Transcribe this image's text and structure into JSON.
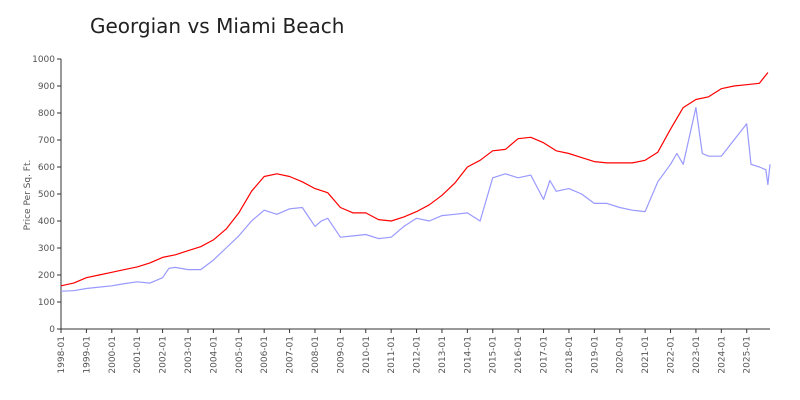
{
  "chart_data": {
    "type": "line",
    "title": "Georgian vs Miami Beach",
    "xlabel": "",
    "ylabel": "Price Per Sq. Ft.",
    "ylim": [
      0,
      1000
    ],
    "yticks": [
      0,
      100,
      200,
      300,
      400,
      500,
      600,
      700,
      800,
      900,
      1000
    ],
    "xlim": [
      "1998-01",
      "2025-12"
    ],
    "xticks": [
      "1998-01",
      "1999-01",
      "2000-01",
      "2001-01",
      "2002-01",
      "2003-01",
      "2004-01",
      "2005-01",
      "2006-01",
      "2007-01",
      "2008-01",
      "2009-01",
      "2010-01",
      "2011-01",
      "2012-01",
      "2013-01",
      "2014-01",
      "2015-01",
      "2016-01",
      "2017-01",
      "2018-01",
      "2019-01",
      "2020-01",
      "2021-01",
      "2022-01",
      "2023-01",
      "2024-01",
      "2025-01"
    ],
    "grid": false,
    "legend": "none",
    "series": [
      {
        "color": "#ff0000",
        "x": [
          "1998-01",
          "1998-07",
          "1999-01",
          "1999-07",
          "2000-01",
          "2000-07",
          "2001-01",
          "2001-07",
          "2002-01",
          "2002-07",
          "2003-01",
          "2003-07",
          "2004-01",
          "2004-07",
          "2005-01",
          "2005-07",
          "2006-01",
          "2006-07",
          "2007-01",
          "2007-07",
          "2008-01",
          "2008-07",
          "2009-01",
          "2009-07",
          "2010-01",
          "2010-07",
          "2011-01",
          "2011-07",
          "2012-01",
          "2012-07",
          "2013-01",
          "2013-07",
          "2014-01",
          "2014-07",
          "2015-01",
          "2015-07",
          "2016-01",
          "2016-07",
          "2017-01",
          "2017-07",
          "2018-01",
          "2018-07",
          "2019-01",
          "2019-07",
          "2020-01",
          "2020-07",
          "2021-01",
          "2021-07",
          "2022-01",
          "2022-07",
          "2023-01",
          "2023-07",
          "2024-01",
          "2024-07",
          "2025-01",
          "2025-07",
          "2025-11"
        ],
        "values": [
          160,
          170,
          190,
          200,
          210,
          220,
          230,
          245,
          265,
          275,
          290,
          305,
          330,
          370,
          430,
          510,
          565,
          575,
          565,
          545,
          520,
          505,
          450,
          430,
          430,
          405,
          400,
          415,
          435,
          460,
          495,
          540,
          600,
          625,
          660,
          665,
          705,
          710,
          690,
          660,
          650,
          635,
          620,
          615,
          615,
          615,
          625,
          655,
          740,
          820,
          850,
          860,
          890,
          900,
          905,
          910,
          950
        ]
      },
      {
        "color": "#9999ff",
        "x": [
          "1998-01",
          "1998-07",
          "1999-01",
          "1999-07",
          "2000-01",
          "2000-07",
          "2001-01",
          "2001-07",
          "2002-01",
          "2002-04",
          "2002-07",
          "2003-01",
          "2003-07",
          "2004-01",
          "2004-07",
          "2005-01",
          "2005-07",
          "2006-01",
          "2006-07",
          "2007-01",
          "2007-07",
          "2008-01",
          "2008-04",
          "2008-07",
          "2009-01",
          "2009-07",
          "2010-01",
          "2010-07",
          "2011-01",
          "2011-07",
          "2012-01",
          "2012-07",
          "2013-01",
          "2013-07",
          "2014-01",
          "2014-07",
          "2015-01",
          "2015-07",
          "2016-01",
          "2016-07",
          "2017-01",
          "2017-04",
          "2017-07",
          "2018-01",
          "2018-07",
          "2019-01",
          "2019-07",
          "2020-01",
          "2020-07",
          "2021-01",
          "2021-07",
          "2022-01",
          "2022-04",
          "2022-07",
          "2023-01",
          "2023-04",
          "2023-07",
          "2024-01",
          "2024-07",
          "2025-01",
          "2025-03",
          "2025-07",
          "2025-10",
          "2025-11",
          "2025-12"
        ],
        "values": [
          140,
          142,
          150,
          155,
          160,
          168,
          175,
          170,
          190,
          225,
          228,
          220,
          220,
          255,
          300,
          345,
          400,
          440,
          425,
          445,
          450,
          380,
          400,
          410,
          340,
          345,
          350,
          335,
          340,
          380,
          410,
          400,
          420,
          425,
          430,
          400,
          560,
          575,
          560,
          570,
          480,
          550,
          510,
          520,
          500,
          465,
          465,
          450,
          440,
          435,
          545,
          610,
          650,
          610,
          820,
          650,
          640,
          640,
          700,
          760,
          610,
          600,
          590,
          535,
          610
        ]
      }
    ]
  }
}
